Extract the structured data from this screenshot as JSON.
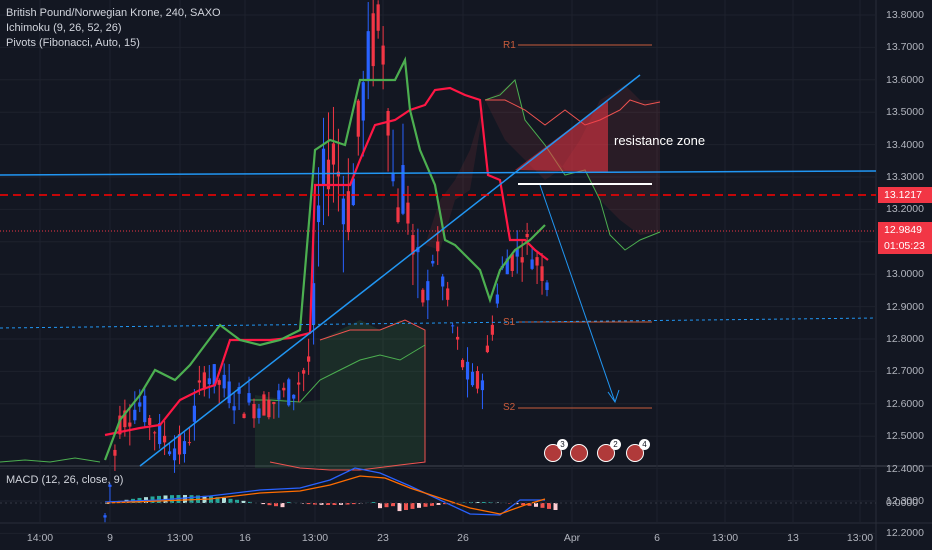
{
  "symbol_title": "British Pound/Norwegian Krone, 240, SAXO",
  "indicators": [
    "Ichimoku (9, 26, 52, 26)",
    "Pivots (Fibonacci, Auto, 15)"
  ],
  "macd_label": "MACD (12, 26, close, 9)",
  "annotation": "resistance zone",
  "price_axis": [
    "13.8000",
    "13.7000",
    "13.6000",
    "13.5000",
    "13.4000",
    "13.3000",
    "13.2000",
    "13.1000",
    "13.0000",
    "12.9000",
    "12.8000",
    "12.7000",
    "12.6000",
    "12.5000",
    "12.4000",
    "12.3000",
    "12.2000"
  ],
  "price_tags": {
    "resistance": "13.1217",
    "current": "12.9849",
    "countdown": "01:05:23"
  },
  "macd_axis": "0.0000",
  "pivot_labels": [
    "R1",
    "S1",
    "S2"
  ],
  "time_axis": [
    "14:00",
    "9",
    "13:00",
    "16",
    "13:00",
    "23",
    "26",
    "Apr",
    "6",
    "13:00",
    "13",
    "13:00"
  ],
  "event_counts": [
    "3",
    "",
    "2",
    "4"
  ],
  "colors": {
    "background": "#131722",
    "up": "#2962ff",
    "down": "#f23645",
    "tenkan": "#ff1744",
    "kijun": "#4caf50",
    "trendline": "#2196f3",
    "resistance": "#ff0000",
    "pivot": "#c95c3c"
  }
}
